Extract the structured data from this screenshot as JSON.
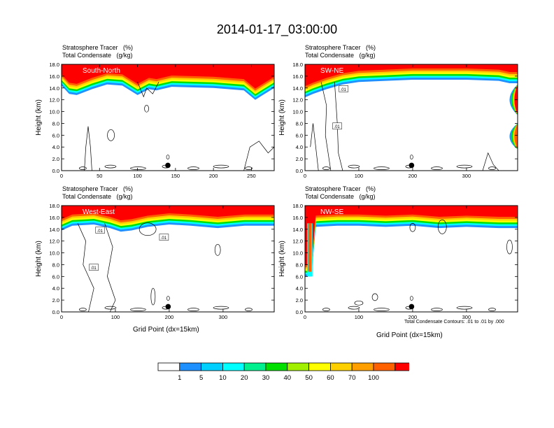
{
  "title": "2014-01-17_03:00:00",
  "panel_header": {
    "line1": "Stratosphere Tracer   (%)",
    "line2": "Total Condensate   (g/kg)"
  },
  "footnote": "Total Condensate Contours: .01 to .01 by .000",
  "colors": {
    "fill": [
      "#ffffff",
      "#1e90ff",
      "#00cfff",
      "#00ffff",
      "#00f090",
      "#00e000",
      "#a0f000",
      "#ffff00",
      "#ffd000",
      "#ffa000",
      "#ff6000",
      "#ff0000"
    ]
  },
  "colorbar": {
    "labels": [
      "1",
      "5",
      "10",
      "20",
      "30",
      "40",
      "50",
      "60",
      "70",
      "100"
    ]
  },
  "chart_data": [
    {
      "type": "heatmap",
      "title": "South-North",
      "ylabel": "Height (km)",
      "xlabel": "",
      "xlim": [
        0,
        280
      ],
      "ylim": [
        0,
        18
      ],
      "xticks": [
        0,
        50,
        100,
        150,
        200,
        250
      ],
      "yticks": [
        "0.0",
        "2.0",
        "4.0",
        "6.0",
        "8.0",
        "10.0",
        "12.0",
        "14.0",
        "16.0",
        "18.0"
      ],
      "tracer_base_km": [
        [
          0,
          14.4
        ],
        [
          10,
          13.0
        ],
        [
          20,
          12.8
        ],
        [
          40,
          13.8
        ],
        [
          60,
          14.6
        ],
        [
          80,
          14.4
        ],
        [
          100,
          12.8
        ],
        [
          115,
          13.8
        ],
        [
          125,
          13.6
        ],
        [
          145,
          14.2
        ],
        [
          200,
          14.0
        ],
        [
          240,
          13.6
        ],
        [
          255,
          12.0
        ],
        [
          265,
          12.8
        ],
        [
          280,
          14.0
        ]
      ],
      "contour_labels": [],
      "marker": [
        140,
        0.9
      ]
    },
    {
      "type": "heatmap",
      "title": "SW-NE",
      "ylabel": "Height (km)",
      "xlabel": "",
      "xlim": [
        0,
        395
      ],
      "ylim": [
        0,
        18
      ],
      "xticks": [
        0,
        100,
        200,
        300
      ],
      "yticks": [
        "0.0",
        "2.0",
        "4.0",
        "6.0",
        "8.0",
        "10.0",
        "12.0",
        "14.0",
        "16.0",
        "18.0"
      ],
      "tracer_base_km": [
        [
          0,
          12.4
        ],
        [
          15,
          13.0
        ],
        [
          40,
          13.8
        ],
        [
          70,
          14.6
        ],
        [
          100,
          15.0
        ],
        [
          150,
          15.2
        ],
        [
          200,
          15.4
        ],
        [
          260,
          15.4
        ],
        [
          300,
          15.4
        ],
        [
          360,
          15.2
        ],
        [
          380,
          14.8
        ],
        [
          395,
          14.8
        ]
      ],
      "contour_labels": [
        ".01",
        ".01"
      ],
      "marker": [
        198,
        0.9
      ]
    },
    {
      "type": "heatmap",
      "title": "West-East",
      "ylabel": "Height (km)",
      "xlabel": "Grid Point (dx=15km)",
      "xlim": [
        0,
        395
      ],
      "ylim": [
        0,
        18
      ],
      "xticks": [
        0,
        100,
        200,
        300
      ],
      "yticks": [
        "0.0",
        "2.0",
        "4.0",
        "6.0",
        "8.0",
        "10.0",
        "12.0",
        "14.0",
        "16.0",
        "18.0"
      ],
      "tracer_base_km": [
        [
          0,
          13.8
        ],
        [
          20,
          14.6
        ],
        [
          60,
          14.8
        ],
        [
          90,
          14.2
        ],
        [
          110,
          13.6
        ],
        [
          130,
          13.8
        ],
        [
          160,
          14.4
        ],
        [
          200,
          14.8
        ],
        [
          240,
          14.6
        ],
        [
          290,
          14.2
        ],
        [
          340,
          14.6
        ],
        [
          395,
          14.6
        ]
      ],
      "contour_labels": [
        ".01",
        ".01",
        ".01"
      ],
      "marker": [
        198,
        0.9
      ]
    },
    {
      "type": "heatmap",
      "title": "NW-SE",
      "ylabel": "Height (km)",
      "xlabel": "Grid Point (dx=15km)",
      "xlim": [
        0,
        395
      ],
      "ylim": [
        0,
        18
      ],
      "xticks": [
        0,
        100,
        200,
        300
      ],
      "yticks": [
        "0.0",
        "2.0",
        "4.0",
        "6.0",
        "8.0",
        "10.0",
        "12.0",
        "14.0",
        "16.0",
        "18.0"
      ],
      "tracer_base_km": [
        [
          0,
          6.0
        ],
        [
          12,
          6.0
        ],
        [
          20,
          14.4
        ],
        [
          60,
          14.6
        ],
        [
          100,
          14.6
        ],
        [
          150,
          14.4
        ],
        [
          200,
          14.6
        ],
        [
          250,
          14.2
        ],
        [
          300,
          14.4
        ],
        [
          360,
          14.2
        ],
        [
          395,
          14.2
        ]
      ],
      "contour_labels": [],
      "marker": [
        198,
        0.9
      ]
    }
  ]
}
